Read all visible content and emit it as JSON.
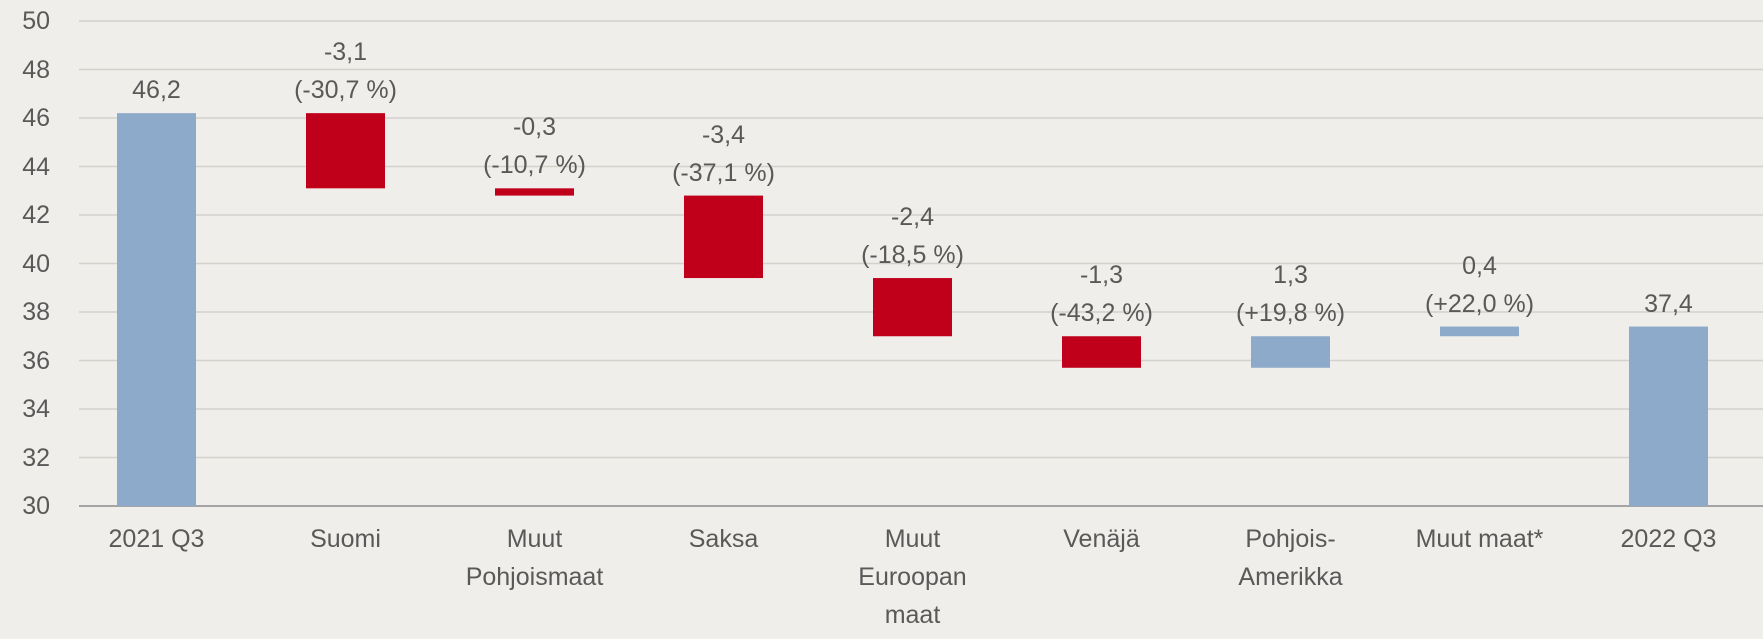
{
  "chart_data": {
    "type": "waterfall",
    "categories": [
      "2021 Q3",
      "Suomi",
      "Muut\nPohjoismaat",
      "Saksa",
      "Muut\nEuroopan\nmaat",
      "Venäjä",
      "Pohjois-\nAmerikka",
      "Muut maat*",
      "2022 Q3"
    ],
    "measure": [
      "total",
      "relative",
      "relative",
      "relative",
      "relative",
      "relative",
      "relative",
      "relative",
      "total"
    ],
    "values": [
      46.2,
      -3.1,
      -0.3,
      -3.4,
      -2.4,
      -1.3,
      1.3,
      0.4,
      37.4
    ],
    "value_labels": [
      "46,2",
      "-3,1",
      "-0,3",
      "-3,4",
      "-2,4",
      "-1,3",
      "1,3",
      "0,4",
      "37,4"
    ],
    "change_labels": [
      null,
      "(-30,7 %)",
      "(-10,7 %)",
      "(-37,1 %)",
      "(-18,5 %)",
      "(-43,2 %)",
      "(+19,8 %)",
      "(+22,0 %)",
      null
    ],
    "colors": {
      "total": "#8eaacb",
      "increase": "#8eaacb",
      "decrease": "#c0001a"
    },
    "ylim": [
      30,
      50
    ],
    "yticks": [
      30,
      32,
      34,
      36,
      38,
      40,
      42,
      44,
      46,
      48,
      50
    ],
    "grid": true
  }
}
